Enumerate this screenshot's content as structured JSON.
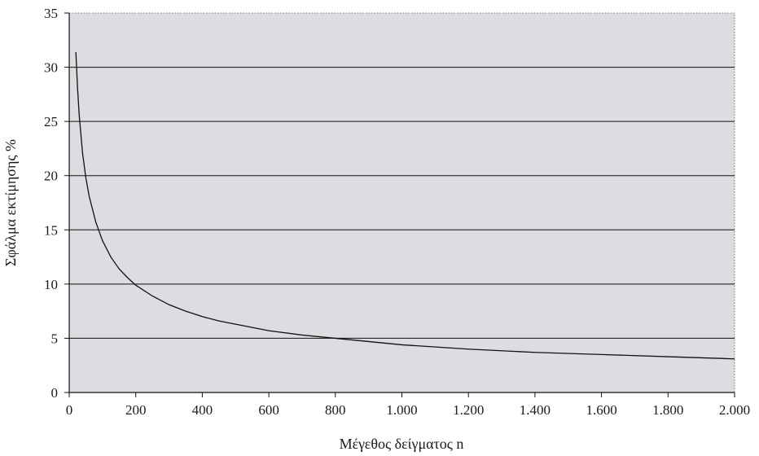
{
  "chart_data": {
    "type": "line",
    "title": "",
    "xlabel": "Μέγεθος δείγματος n",
    "ylabel": "Σφάλμα εκτίμησης %",
    "xlim": [
      0,
      2000
    ],
    "ylim": [
      0,
      35
    ],
    "grid": true,
    "legend": "none",
    "colors": {
      "plot_background": "#dcdde0",
      "line": "#111111",
      "grid": "#111111"
    },
    "x_ticks": [
      0,
      200,
      400,
      600,
      800,
      1000,
      1200,
      1400,
      1600,
      1800,
      2000
    ],
    "x_tick_labels": [
      "0",
      "200",
      "400",
      "600",
      "800",
      "1.000",
      "1.200",
      "1.400",
      "1.600",
      "1.800",
      "2.000"
    ],
    "y_ticks": [
      0,
      5,
      10,
      15,
      20,
      25,
      30,
      35
    ],
    "y_tick_labels": [
      "0",
      "5",
      "10",
      "15",
      "20",
      "25",
      "30",
      "35"
    ],
    "series": [
      {
        "x": [
          20,
          25,
          30,
          40,
          50,
          60,
          80,
          100,
          125,
          150,
          175,
          200,
          250,
          300,
          350,
          400,
          450,
          500,
          600,
          700,
          800,
          900,
          1000,
          1200,
          1400,
          1600,
          1800,
          2000
        ],
        "values": [
          31.4,
          28.1,
          25.6,
          22.1,
          19.8,
          18.1,
          15.7,
          14.0,
          12.5,
          11.4,
          10.6,
          9.9,
          8.9,
          8.1,
          7.5,
          7.0,
          6.6,
          6.3,
          5.7,
          5.3,
          5.0,
          4.7,
          4.4,
          4.0,
          3.7,
          3.5,
          3.3,
          3.1
        ]
      }
    ]
  }
}
